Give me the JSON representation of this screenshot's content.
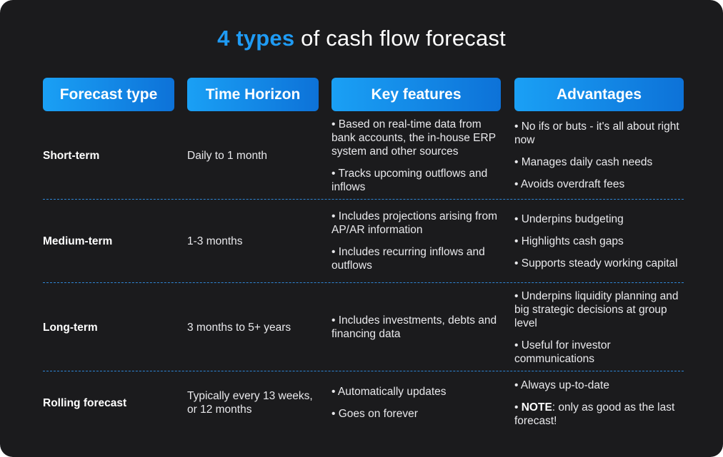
{
  "title": {
    "highlight": "4 types",
    "rest": " of cash flow forecast"
  },
  "headers": [
    "Forecast type",
    "Time Horizon",
    "Key features",
    "Advantages"
  ],
  "rows": [
    {
      "type": "Short-term",
      "horizon": "Daily to 1 month",
      "features": [
        "• Based on real-time data from bank accounts, the in-house ERP system and other sources",
        "• Tracks upcoming outflows and inflows"
      ],
      "advantages": [
        "• No ifs or buts - it's all about right now",
        "• Manages daily cash needs",
        "• Avoids overdraft fees"
      ]
    },
    {
      "type": "Medium-term",
      "horizon": "1-3 months",
      "features": [
        "• Includes projections arising from AP/AR information",
        "• Includes recurring inflows and outflows"
      ],
      "advantages": [
        "• Underpins budgeting",
        "• Highlights cash gaps",
        "• Supports steady working capital"
      ]
    },
    {
      "type": "Long-term",
      "horizon": "3 months to 5+ years",
      "features": [
        "• Includes investments, debts and financing data"
      ],
      "advantages": [
        "• Underpins liquidity planning and big strategic decisions at group level",
        "• Useful for investor communications"
      ]
    },
    {
      "type": "Rolling forecast",
      "horizon": "Typically every 13 weeks, or 12 months",
      "features": [
        "• Automatically updates",
        "• Goes on forever"
      ],
      "advantages": [
        "• Always up-to-date"
      ],
      "note": {
        "prefix": "• ",
        "label": "NOTE",
        "text": ": only as good as the last forecast!"
      }
    }
  ]
}
